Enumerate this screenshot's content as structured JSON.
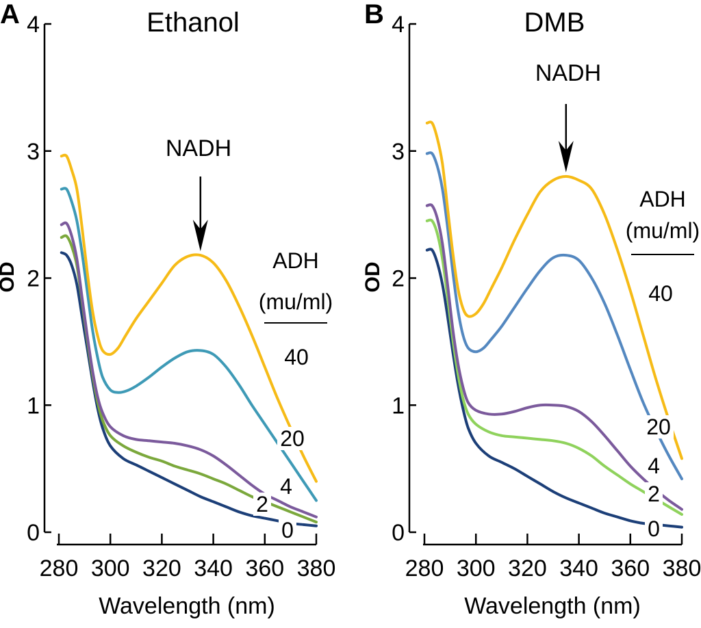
{
  "colors": {
    "0": "#1c3f78",
    "2": "#7ba83c",
    "4": "#7b5a9c",
    "20": "#3e9ab6",
    "40": "#f6bb17",
    "a_2": "#7ba83c",
    "b_2": "#8fd25c",
    "b_20": "#5488c0"
  },
  "chart_data": [
    {
      "type": "line",
      "panel": "A",
      "title": "Ethanol",
      "xlabel": "Wavelength (nm)",
      "ylabel": "OD",
      "xlim": [
        280,
        380
      ],
      "ylim": [
        0,
        4
      ],
      "xticks": [
        "280",
        "300",
        "320",
        "340",
        "360",
        "380"
      ],
      "yticks": [
        "0",
        "1",
        "2",
        "3",
        "4"
      ],
      "annotation": {
        "text": "NADH",
        "x": 335,
        "y": 2.18
      },
      "legend_title": [
        "ADH",
        "(mu/ml)"
      ],
      "series": [
        {
          "name": "0",
          "color_key": "0",
          "x": [
            281,
            283,
            285,
            287,
            289,
            291,
            293,
            295,
            297,
            300,
            305,
            310,
            315,
            320,
            325,
            330,
            335,
            340,
            345,
            350,
            355,
            360,
            365,
            370,
            375,
            380
          ],
          "y": [
            2.2,
            2.18,
            2.1,
            1.95,
            1.7,
            1.45,
            1.2,
            0.98,
            0.82,
            0.68,
            0.58,
            0.53,
            0.48,
            0.43,
            0.38,
            0.33,
            0.28,
            0.24,
            0.2,
            0.16,
            0.13,
            0.11,
            0.09,
            0.07,
            0.06,
            0.05
          ]
        },
        {
          "name": "2",
          "color_key": "a_2",
          "x": [
            281,
            283,
            285,
            287,
            289,
            291,
            293,
            295,
            297,
            300,
            305,
            310,
            315,
            320,
            325,
            330,
            335,
            340,
            345,
            350,
            355,
            360,
            365,
            370,
            375,
            380
          ],
          "y": [
            2.32,
            2.33,
            2.25,
            2.1,
            1.82,
            1.52,
            1.25,
            1.03,
            0.88,
            0.76,
            0.68,
            0.63,
            0.59,
            0.56,
            0.52,
            0.49,
            0.46,
            0.42,
            0.38,
            0.33,
            0.28,
            0.24,
            0.2,
            0.16,
            0.12,
            0.08
          ]
        },
        {
          "name": "4",
          "color_key": "4",
          "x": [
            281,
            283,
            285,
            287,
            289,
            291,
            293,
            295,
            297,
            300,
            305,
            310,
            315,
            320,
            325,
            330,
            335,
            340,
            345,
            350,
            355,
            360,
            365,
            370,
            375,
            380
          ],
          "y": [
            2.42,
            2.43,
            2.33,
            2.15,
            1.85,
            1.55,
            1.28,
            1.07,
            0.94,
            0.83,
            0.76,
            0.73,
            0.72,
            0.71,
            0.7,
            0.68,
            0.65,
            0.6,
            0.53,
            0.45,
            0.37,
            0.3,
            0.25,
            0.2,
            0.16,
            0.12
          ]
        },
        {
          "name": "20",
          "color_key": "20",
          "x": [
            281,
            283,
            285,
            287,
            289,
            291,
            293,
            295,
            297,
            300,
            303,
            306,
            310,
            315,
            320,
            325,
            330,
            335,
            340,
            345,
            350,
            355,
            360,
            365,
            370,
            375,
            380
          ],
          "y": [
            2.7,
            2.7,
            2.6,
            2.45,
            2.2,
            1.9,
            1.6,
            1.38,
            1.22,
            1.12,
            1.1,
            1.11,
            1.15,
            1.22,
            1.3,
            1.37,
            1.42,
            1.43,
            1.4,
            1.3,
            1.16,
            1.0,
            0.85,
            0.7,
            0.55,
            0.4,
            0.25
          ]
        },
        {
          "name": "40",
          "color_key": "40",
          "x": [
            281,
            283,
            285,
            287,
            289,
            291,
            293,
            295,
            297,
            300,
            303,
            306,
            310,
            315,
            320,
            325,
            330,
            335,
            340,
            345,
            350,
            355,
            360,
            365,
            370,
            375,
            380
          ],
          "y": [
            2.96,
            2.96,
            2.85,
            2.7,
            2.4,
            2.05,
            1.75,
            1.55,
            1.43,
            1.4,
            1.45,
            1.55,
            1.68,
            1.82,
            1.96,
            2.1,
            2.17,
            2.18,
            2.12,
            1.98,
            1.78,
            1.55,
            1.3,
            1.05,
            0.82,
            0.6,
            0.4
          ]
        }
      ]
    },
    {
      "type": "line",
      "panel": "B",
      "title": "DMB",
      "xlabel": "Wavelength (nm)",
      "ylabel": "OD",
      "xlim": [
        280,
        380
      ],
      "ylim": [
        0,
        4
      ],
      "xticks": [
        "280",
        "300",
        "320",
        "340",
        "360",
        "380"
      ],
      "yticks": [
        "0",
        "1",
        "2",
        "3",
        "4"
      ],
      "annotation": {
        "text": "NADH",
        "x": 335,
        "y": 2.8
      },
      "legend_title": [
        "ADH",
        "(mu/ml)"
      ],
      "series": [
        {
          "name": "0",
          "color_key": "0",
          "x": [
            281,
            283,
            285,
            287,
            289,
            291,
            293,
            295,
            297,
            300,
            305,
            310,
            315,
            320,
            325,
            330,
            335,
            340,
            345,
            350,
            355,
            360,
            365,
            370,
            375,
            380
          ],
          "y": [
            2.22,
            2.22,
            2.12,
            1.95,
            1.7,
            1.42,
            1.17,
            0.97,
            0.82,
            0.7,
            0.6,
            0.55,
            0.5,
            0.44,
            0.38,
            0.32,
            0.27,
            0.23,
            0.19,
            0.15,
            0.12,
            0.09,
            0.07,
            0.06,
            0.05,
            0.04
          ]
        },
        {
          "name": "2",
          "color_key": "b_2",
          "x": [
            281,
            283,
            285,
            287,
            289,
            291,
            293,
            295,
            297,
            300,
            305,
            310,
            315,
            320,
            325,
            330,
            335,
            340,
            345,
            350,
            355,
            360,
            365,
            370,
            375,
            380
          ],
          "y": [
            2.45,
            2.45,
            2.35,
            2.15,
            1.85,
            1.52,
            1.25,
            1.05,
            0.93,
            0.85,
            0.79,
            0.76,
            0.75,
            0.74,
            0.73,
            0.72,
            0.7,
            0.66,
            0.6,
            0.52,
            0.45,
            0.38,
            0.32,
            0.26,
            0.2,
            0.14
          ]
        },
        {
          "name": "4",
          "color_key": "4",
          "x": [
            281,
            283,
            285,
            287,
            289,
            291,
            293,
            295,
            297,
            300,
            305,
            310,
            315,
            320,
            325,
            330,
            335,
            340,
            345,
            350,
            355,
            360,
            365,
            370,
            375,
            380
          ],
          "y": [
            2.57,
            2.57,
            2.47,
            2.27,
            1.95,
            1.6,
            1.33,
            1.14,
            1.02,
            0.96,
            0.93,
            0.93,
            0.95,
            0.98,
            1.0,
            1.0,
            0.99,
            0.95,
            0.87,
            0.76,
            0.64,
            0.52,
            0.42,
            0.33,
            0.25,
            0.18
          ]
        },
        {
          "name": "20",
          "color_key": "b_20",
          "x": [
            281,
            283,
            285,
            287,
            289,
            291,
            293,
            295,
            297,
            300,
            303,
            306,
            310,
            315,
            320,
            325,
            330,
            335,
            340,
            345,
            350,
            355,
            360,
            365,
            370,
            375,
            380
          ],
          "y": [
            2.98,
            2.98,
            2.88,
            2.7,
            2.4,
            2.05,
            1.75,
            1.55,
            1.45,
            1.42,
            1.45,
            1.52,
            1.62,
            1.77,
            1.92,
            2.06,
            2.16,
            2.18,
            2.14,
            2.0,
            1.8,
            1.55,
            1.28,
            1.02,
            0.8,
            0.6,
            0.42
          ]
        },
        {
          "name": "40",
          "color_key": "40",
          "x": [
            281,
            283,
            285,
            287,
            289,
            291,
            293,
            295,
            297,
            300,
            303,
            306,
            310,
            315,
            320,
            325,
            330,
            335,
            340,
            345,
            350,
            355,
            360,
            365,
            370,
            375,
            380
          ],
          "y": [
            3.22,
            3.22,
            3.1,
            2.9,
            2.55,
            2.2,
            1.92,
            1.76,
            1.7,
            1.72,
            1.8,
            1.92,
            2.08,
            2.3,
            2.5,
            2.68,
            2.77,
            2.8,
            2.77,
            2.7,
            2.5,
            2.22,
            1.9,
            1.55,
            1.2,
            0.88,
            0.58
          ]
        }
      ]
    }
  ]
}
